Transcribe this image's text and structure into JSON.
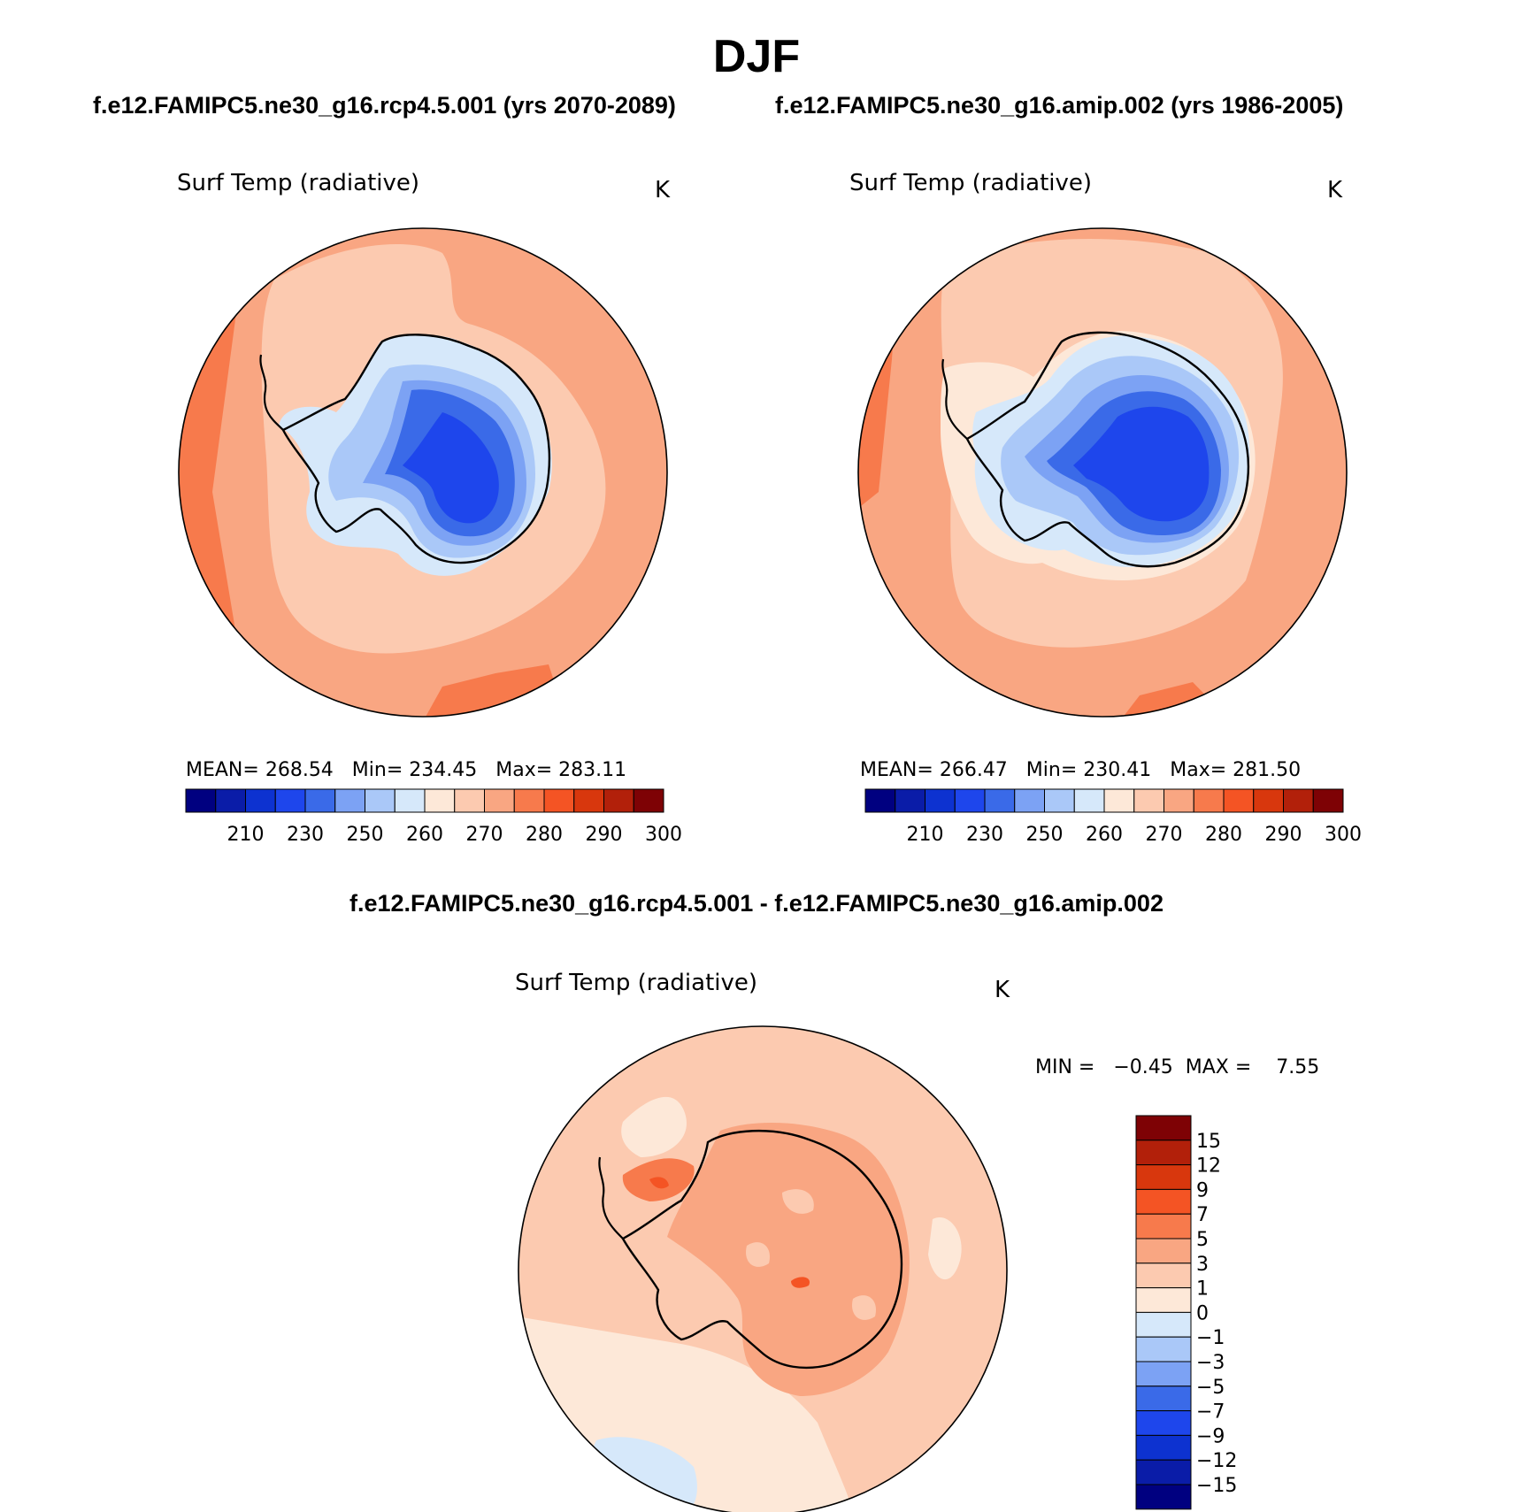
{
  "figure": {
    "season_title": "DJF",
    "diff_title": "f.e12.FAMIPC5.ne30_g16.rcp4.5.001 - f.e12.FAMIPC5.ne30_g16.amip.002"
  },
  "panels": {
    "left": {
      "case_title": "f.e12.FAMIPC5.ne30_g16.rcp4.5.001 (yrs 2070-2089)",
      "variable": "Surf Temp (radiative)",
      "units": "K",
      "mean_label": "MEAN=",
      "mean_value": "268.54",
      "min_label": "Min=",
      "min_value": "234.45",
      "max_label": "Max=",
      "max_value": "283.11"
    },
    "right": {
      "case_title": "f.e12.FAMIPC5.ne30_g16.amip.002 (yrs 1986-2005)",
      "variable": "Surf Temp (radiative)",
      "units": "K",
      "mean_label": "MEAN=",
      "mean_value": "266.47",
      "min_label": "Min=",
      "min_value": "230.41",
      "max_label": "Max=",
      "max_value": "281.50"
    },
    "diff": {
      "variable": "Surf Temp (radiative)",
      "units": "K",
      "minmax_text": "MIN =   −0.45  MAX =    7.55"
    }
  },
  "abs_colorbar": {
    "colors": [
      "#000080",
      "#0a1ca8",
      "#0d32d0",
      "#1e46ec",
      "#3a6ae8",
      "#7ca2f4",
      "#aac8f8",
      "#d6e8fa",
      "#fde8d8",
      "#fccab0",
      "#f9a682",
      "#f77a4c",
      "#f45424",
      "#d8370d",
      "#b2200a",
      "#7e0205"
    ],
    "tick_labels": [
      "210",
      "230",
      "250",
      "260",
      "270",
      "280",
      "290",
      "300"
    ]
  },
  "diff_colorbar": {
    "colors": [
      "#000080",
      "#0a1ca8",
      "#0d32d0",
      "#1e46ec",
      "#3a6ae8",
      "#7ca2f4",
      "#aac8f8",
      "#d6e8fa",
      "#fde8d8",
      "#fccab0",
      "#f9a682",
      "#f77a4c",
      "#f45424",
      "#d8370d",
      "#b2200a",
      "#7e0205"
    ],
    "tick_labels": [
      "15",
      "12",
      "9",
      "7",
      "5",
      "3",
      "1",
      "0",
      "−1",
      "−3",
      "−5",
      "−7",
      "−9",
      "−12",
      "−15"
    ]
  }
}
